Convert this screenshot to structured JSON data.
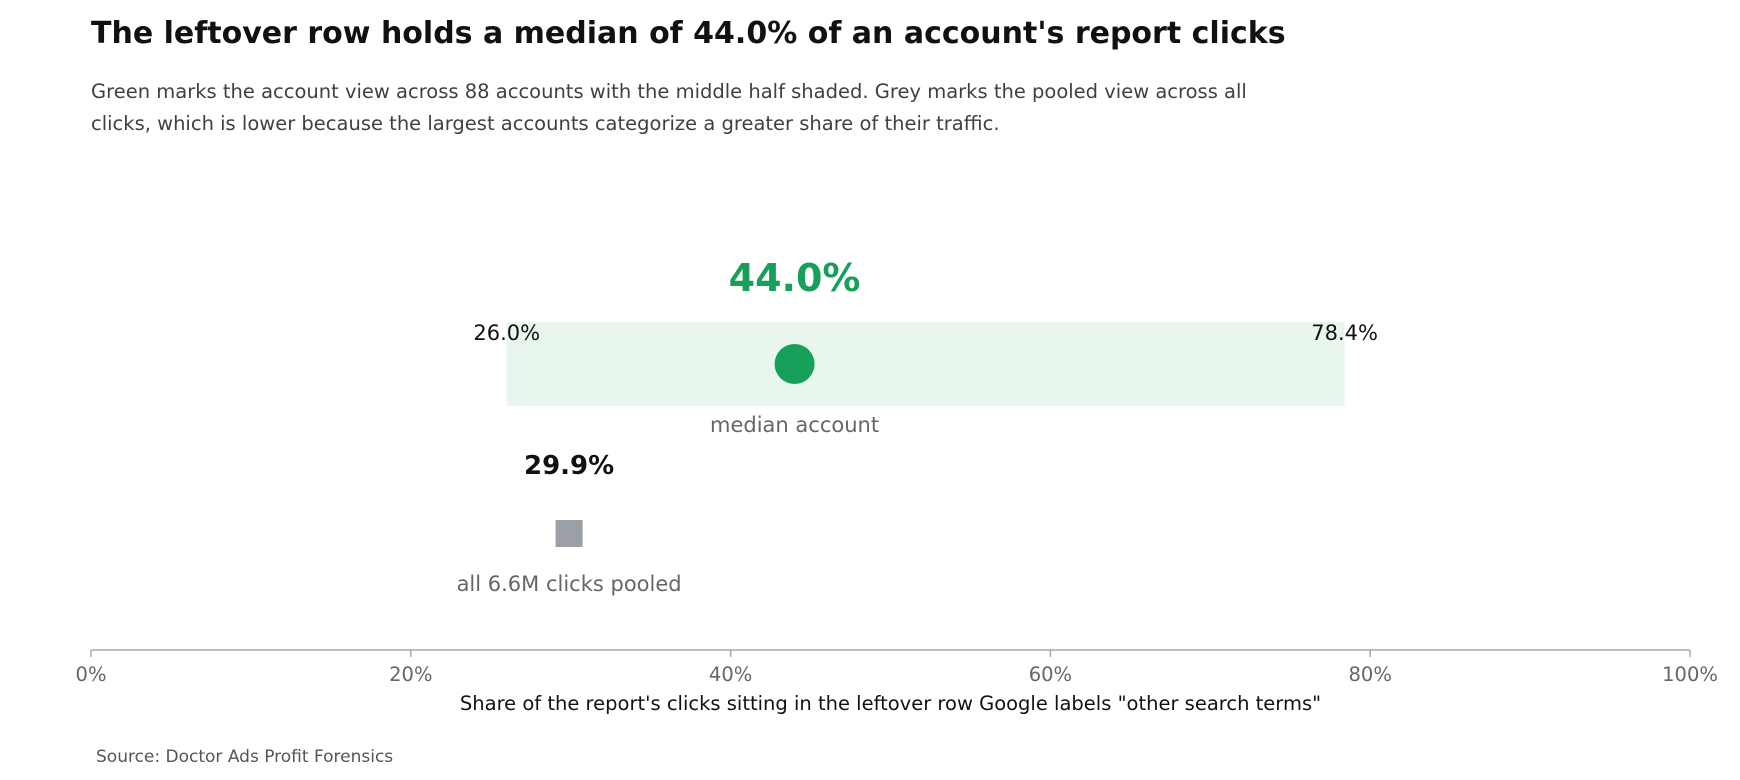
{
  "chart_data": {
    "type": "dot_range",
    "title": "The leftover row holds a median of 44.0% of an account's report clicks",
    "subtitle": "Green marks the account view across 88 accounts with the middle half shaded. Grey marks the pooled view across all clicks, which is lower because the largest accounts categorize a greater share of their traffic.",
    "xlabel": "Share of the report's clicks sitting in the leftover row Google labels \"other search terms\"",
    "xlim": [
      0,
      100
    ],
    "x_ticks": [
      0,
      20,
      40,
      60,
      80,
      100
    ],
    "x_tick_labels": [
      "0%",
      "20%",
      "40%",
      "60%",
      "80%",
      "100%"
    ],
    "account_view": {
      "median": 44.0,
      "median_label": "44.0%",
      "p25": 26.0,
      "p25_label": "26.0%",
      "p75": 78.4,
      "p75_label": "78.4%",
      "caption": "median account"
    },
    "pooled_view": {
      "value": 29.9,
      "value_label": "29.9%",
      "caption": "all 6.6M clicks pooled"
    },
    "source": "Source: Doctor Ads Profit Forensics"
  },
  "colors": {
    "accent_green": "#16a05a",
    "band_green": "#e8f6ee",
    "pooled_grey": "#9aa0a6",
    "axis": "#aaaaaa",
    "muted_text": "#666666"
  }
}
